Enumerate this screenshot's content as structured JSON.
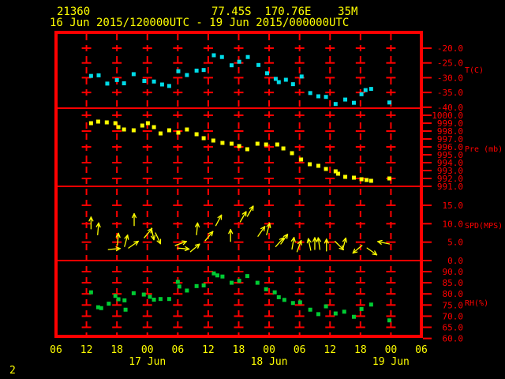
{
  "header": {
    "station_id": "21360",
    "position": "77.45S  170.76E    35M",
    "period": "16 Jun 2015/120000UTC - 19 Jun 2015/000000UTC"
  },
  "footer": {
    "page_number": "2"
  },
  "colors": {
    "background": "#000000",
    "frame": "#ff0000",
    "axis_text": "#ff0000",
    "title_text": "#ffff00",
    "temperature": "#00dce8",
    "pressure": "#ffff00",
    "wind": "#ffff00",
    "humidity": "#00cc33"
  },
  "chart_data": {
    "type": "scatter",
    "description": "Surface station time series, four stacked panels",
    "x_axis": {
      "start": "16 Jun 2015 06UTC",
      "end": "19 Jun 2015 06UTC",
      "unit": "hours",
      "range_hours": [
        0,
        72
      ],
      "tick_interval_hours": 6,
      "hour_labels": [
        "06",
        "12",
        "18",
        "00",
        "06",
        "12",
        "18",
        "00",
        "06",
        "12",
        "18",
        "00",
        "06"
      ],
      "date_labels": [
        {
          "text": "17 Jun",
          "hour": 18
        },
        {
          "text": "18 Jun",
          "hour": 42
        },
        {
          "text": "19 Jun",
          "hour": 66
        }
      ]
    },
    "panels": [
      {
        "id": "temp",
        "label": "T(C)",
        "series_name": "Temperature",
        "unit": "C",
        "marker": "square",
        "color_key": "temperature",
        "y_ticks": [
          -20,
          -25,
          -30,
          -35,
          -40
        ],
        "y_range": [
          -40.4,
          -14.8
        ],
        "points": [
          [
            6.9,
            -29.4
          ],
          [
            8.4,
            -29.2
          ],
          [
            10.1,
            -32.0
          ],
          [
            12.0,
            -30.8
          ],
          [
            13.4,
            -31.9
          ],
          [
            15.3,
            -28.8
          ],
          [
            17.4,
            -31.1
          ],
          [
            19.3,
            -31.3
          ],
          [
            20.9,
            -32.3
          ],
          [
            22.3,
            -32.8
          ],
          [
            24.1,
            -27.8
          ],
          [
            25.8,
            -29.1
          ],
          [
            27.7,
            -27.6
          ],
          [
            29.1,
            -27.4
          ],
          [
            31.1,
            -22.4
          ],
          [
            32.7,
            -23.0
          ],
          [
            34.6,
            -25.8
          ],
          [
            36.1,
            -24.6
          ],
          [
            37.8,
            -23.0
          ],
          [
            39.9,
            -25.7
          ],
          [
            41.6,
            -28.5
          ],
          [
            43.3,
            -30.4
          ],
          [
            43.9,
            -31.5
          ],
          [
            45.3,
            -30.7
          ],
          [
            46.7,
            -32.2
          ],
          [
            48.4,
            -29.6
          ],
          [
            50.1,
            -35.2
          ],
          [
            51.7,
            -36.3
          ],
          [
            53.2,
            -36.5
          ],
          [
            55.1,
            -38.9
          ],
          [
            57.0,
            -37.4
          ],
          [
            58.7,
            -38.5
          ],
          [
            60.2,
            -35.6
          ],
          [
            61.0,
            -34.2
          ],
          [
            62.1,
            -33.8
          ],
          [
            65.7,
            -38.4
          ]
        ]
      },
      {
        "id": "pres",
        "label": "Pre (mb)",
        "series_name": "Pressure",
        "unit": "mb",
        "marker": "square",
        "color_key": "pressure",
        "y_ticks": [
          1000,
          999,
          998,
          997,
          996,
          995,
          994,
          993,
          992,
          991
        ],
        "y_range": [
          991,
          1001
        ],
        "points": [
          [
            6.9,
            999.0
          ],
          [
            8.3,
            999.2
          ],
          [
            10.0,
            999.1
          ],
          [
            11.7,
            999.0
          ],
          [
            12.3,
            998.5
          ],
          [
            13.4,
            998.2
          ],
          [
            15.3,
            998.1
          ],
          [
            17.0,
            998.7
          ],
          [
            18.1,
            999.0
          ],
          [
            19.3,
            998.5
          ],
          [
            20.6,
            997.7
          ],
          [
            22.3,
            998.1
          ],
          [
            24.1,
            997.8
          ],
          [
            25.8,
            998.2
          ],
          [
            27.7,
            997.6
          ],
          [
            29.1,
            997.1
          ],
          [
            31.0,
            996.8
          ],
          [
            32.8,
            996.5
          ],
          [
            34.6,
            996.4
          ],
          [
            36.1,
            996.1
          ],
          [
            37.7,
            995.7
          ],
          [
            39.7,
            996.4
          ],
          [
            41.4,
            996.3
          ],
          [
            43.6,
            996.3
          ],
          [
            44.8,
            995.8
          ],
          [
            46.5,
            995.2
          ],
          [
            48.3,
            994.4
          ],
          [
            50.0,
            993.8
          ],
          [
            51.7,
            993.6
          ],
          [
            53.2,
            993.2
          ],
          [
            55.1,
            992.9
          ],
          [
            55.6,
            992.6
          ],
          [
            57.0,
            992.2
          ],
          [
            58.7,
            992.1
          ],
          [
            60.2,
            991.9
          ],
          [
            61.2,
            991.8
          ],
          [
            62.1,
            991.7
          ],
          [
            65.7,
            992.0
          ]
        ]
      },
      {
        "id": "wind",
        "label": "SPD(MPS)",
        "series_name": "Wind speed and direction",
        "unit": "m/s",
        "marker": "arrow",
        "color_key": "wind",
        "y_ticks": [
          15,
          10,
          5,
          0
        ],
        "y_range": [
          0,
          20.2
        ],
        "points_format": [
          "hour",
          "speed_mps",
          "arrow_angle_deg_clockwise_from_up"
        ],
        "points": [
          [
            6.9,
            8.6,
            0
          ],
          [
            8.2,
            7.0,
            5
          ],
          [
            10.3,
            3.0,
            85
          ],
          [
            12.1,
            4.2,
            5
          ],
          [
            13.5,
            3.8,
            15
          ],
          [
            14.3,
            3.4,
            55
          ],
          [
            15.4,
            9.5,
            0
          ],
          [
            17.4,
            6.2,
            40
          ],
          [
            18.8,
            8.8,
            168
          ],
          [
            19.6,
            7.5,
            155
          ],
          [
            23.5,
            4.1,
            70
          ],
          [
            23.9,
            3.4,
            95
          ],
          [
            26.5,
            2.4,
            50
          ],
          [
            27.7,
            7.0,
            5
          ],
          [
            29.4,
            5.4,
            40
          ],
          [
            31.5,
            9.5,
            28
          ],
          [
            34.4,
            5.2,
            0
          ],
          [
            36.3,
            10.5,
            30
          ],
          [
            37.7,
            12.0,
            30
          ],
          [
            39.8,
            6.6,
            35
          ],
          [
            41.5,
            7.0,
            15
          ],
          [
            43.3,
            3.8,
            42
          ],
          [
            44.3,
            4.5,
            35
          ],
          [
            46.5,
            3.1,
            10
          ],
          [
            47.5,
            2.4,
            20
          ],
          [
            50.2,
            2.8,
            -12
          ],
          [
            51.0,
            3.0,
            0
          ],
          [
            52.0,
            3.0,
            -8
          ],
          [
            53.3,
            2.6,
            0
          ],
          [
            55.0,
            5.2,
            135
          ],
          [
            56.5,
            3.0,
            15
          ],
          [
            60.3,
            4.1,
            230
          ],
          [
            61.3,
            3.4,
            125
          ],
          [
            65.7,
            4.5,
            282
          ]
        ]
      },
      {
        "id": "rh",
        "label": "RH(%)",
        "series_name": "Relative humidity",
        "unit": "%",
        "marker": "square",
        "color_key": "humidity",
        "y_ticks": [
          90,
          85,
          80,
          75,
          70,
          65,
          60
        ],
        "y_range": [
          60,
          94
        ],
        "points": [
          [
            6.9,
            80.7
          ],
          [
            8.3,
            74.0
          ],
          [
            8.9,
            73.6
          ],
          [
            10.4,
            75.6
          ],
          [
            11.7,
            79.1
          ],
          [
            12.3,
            77.6
          ],
          [
            13.5,
            77.1
          ],
          [
            13.7,
            72.9
          ],
          [
            15.3,
            80.3
          ],
          [
            17.3,
            79.7
          ],
          [
            18.5,
            78.7
          ],
          [
            19.3,
            77.4
          ],
          [
            20.6,
            77.7
          ],
          [
            22.3,
            77.7
          ],
          [
            24.0,
            85.4
          ],
          [
            24.3,
            83.3
          ],
          [
            25.8,
            81.5
          ],
          [
            27.7,
            83.5
          ],
          [
            29.1,
            83.8
          ],
          [
            31.1,
            89.2
          ],
          [
            31.8,
            88.3
          ],
          [
            32.8,
            87.8
          ],
          [
            34.6,
            85.0
          ],
          [
            36.1,
            85.9
          ],
          [
            37.7,
            88.0
          ],
          [
            39.7,
            85.0
          ],
          [
            41.4,
            82.1
          ],
          [
            43.1,
            80.7
          ],
          [
            43.9,
            78.5
          ],
          [
            45.0,
            77.3
          ],
          [
            46.7,
            75.9
          ],
          [
            48.1,
            76.2
          ],
          [
            50.1,
            72.9
          ],
          [
            51.7,
            70.9
          ],
          [
            53.2,
            74.4
          ],
          [
            55.1,
            71.2
          ],
          [
            56.8,
            72.0
          ],
          [
            58.7,
            69.7
          ],
          [
            60.2,
            73.2
          ],
          [
            62.1,
            75.2
          ],
          [
            65.7,
            68.1
          ]
        ]
      }
    ]
  }
}
